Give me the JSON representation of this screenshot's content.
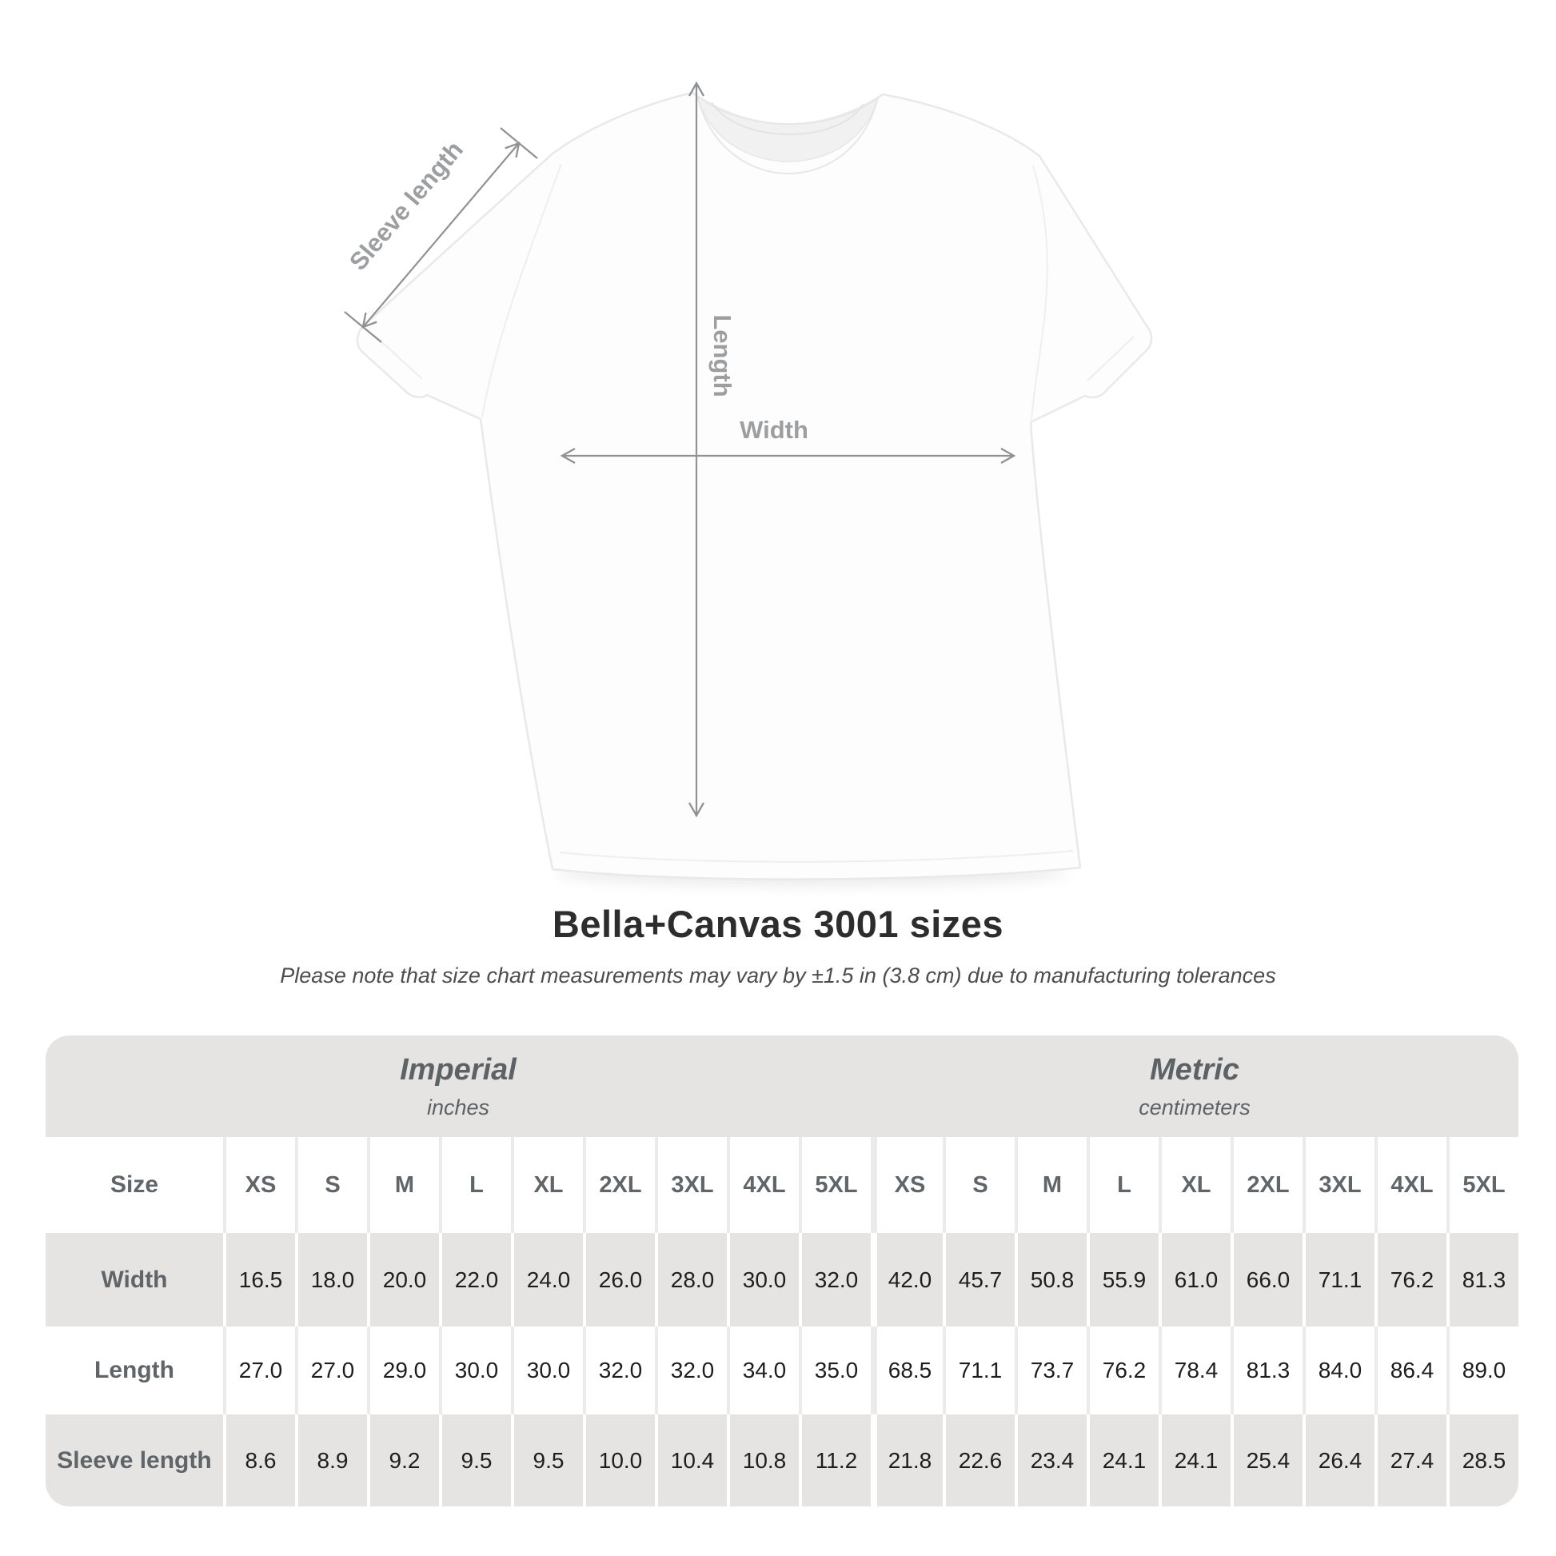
{
  "diagram": {
    "sleeve_label": "Sleeve length",
    "length_label": "Length",
    "width_label": "Width"
  },
  "heading": {
    "title": "Bella+Canvas 3001 sizes",
    "subtitle": "Please note that size chart measurements may vary by ±1.5 in (3.8 cm) due to manufacturing tolerances"
  },
  "chart_data": {
    "type": "table",
    "title": "Bella+Canvas 3001 sizes",
    "size_header": "Size",
    "sizes": [
      "XS",
      "S",
      "M",
      "L",
      "XL",
      "2XL",
      "3XL",
      "4XL",
      "5XL"
    ],
    "groups": [
      {
        "label": "Imperial",
        "unit": "inches"
      },
      {
        "label": "Metric",
        "unit": "centimeters"
      }
    ],
    "rows": [
      {
        "label": "Width",
        "imperial": [
          "16.5",
          "18.0",
          "20.0",
          "22.0",
          "24.0",
          "26.0",
          "28.0",
          "30.0",
          "32.0"
        ],
        "metric": [
          "42.0",
          "45.7",
          "50.8",
          "55.9",
          "61.0",
          "66.0",
          "71.1",
          "76.2",
          "81.3"
        ]
      },
      {
        "label": "Length",
        "imperial": [
          "27.0",
          "27.0",
          "29.0",
          "30.0",
          "30.0",
          "32.0",
          "32.0",
          "34.0",
          "35.0"
        ],
        "metric": [
          "68.5",
          "71.1",
          "73.7",
          "76.2",
          "78.4",
          "81.3",
          "84.0",
          "86.4",
          "89.0"
        ]
      },
      {
        "label": "Sleeve length",
        "imperial": [
          "8.6",
          "8.9",
          "9.2",
          "9.5",
          "9.5",
          "10.0",
          "10.4",
          "10.8",
          "11.2"
        ],
        "metric": [
          "21.8",
          "22.6",
          "23.4",
          "24.1",
          "24.1",
          "25.4",
          "26.4",
          "27.4",
          "28.5"
        ]
      }
    ]
  },
  "colors": {
    "table_band_gray": "#e5e4e3",
    "header_text_gray": "#5f6568",
    "dimension_line_gray": "#8f9193",
    "dimension_label_gray": "#9c9ea0",
    "value_text": "#1e1e1e",
    "title_text": "#2d2d2d"
  }
}
